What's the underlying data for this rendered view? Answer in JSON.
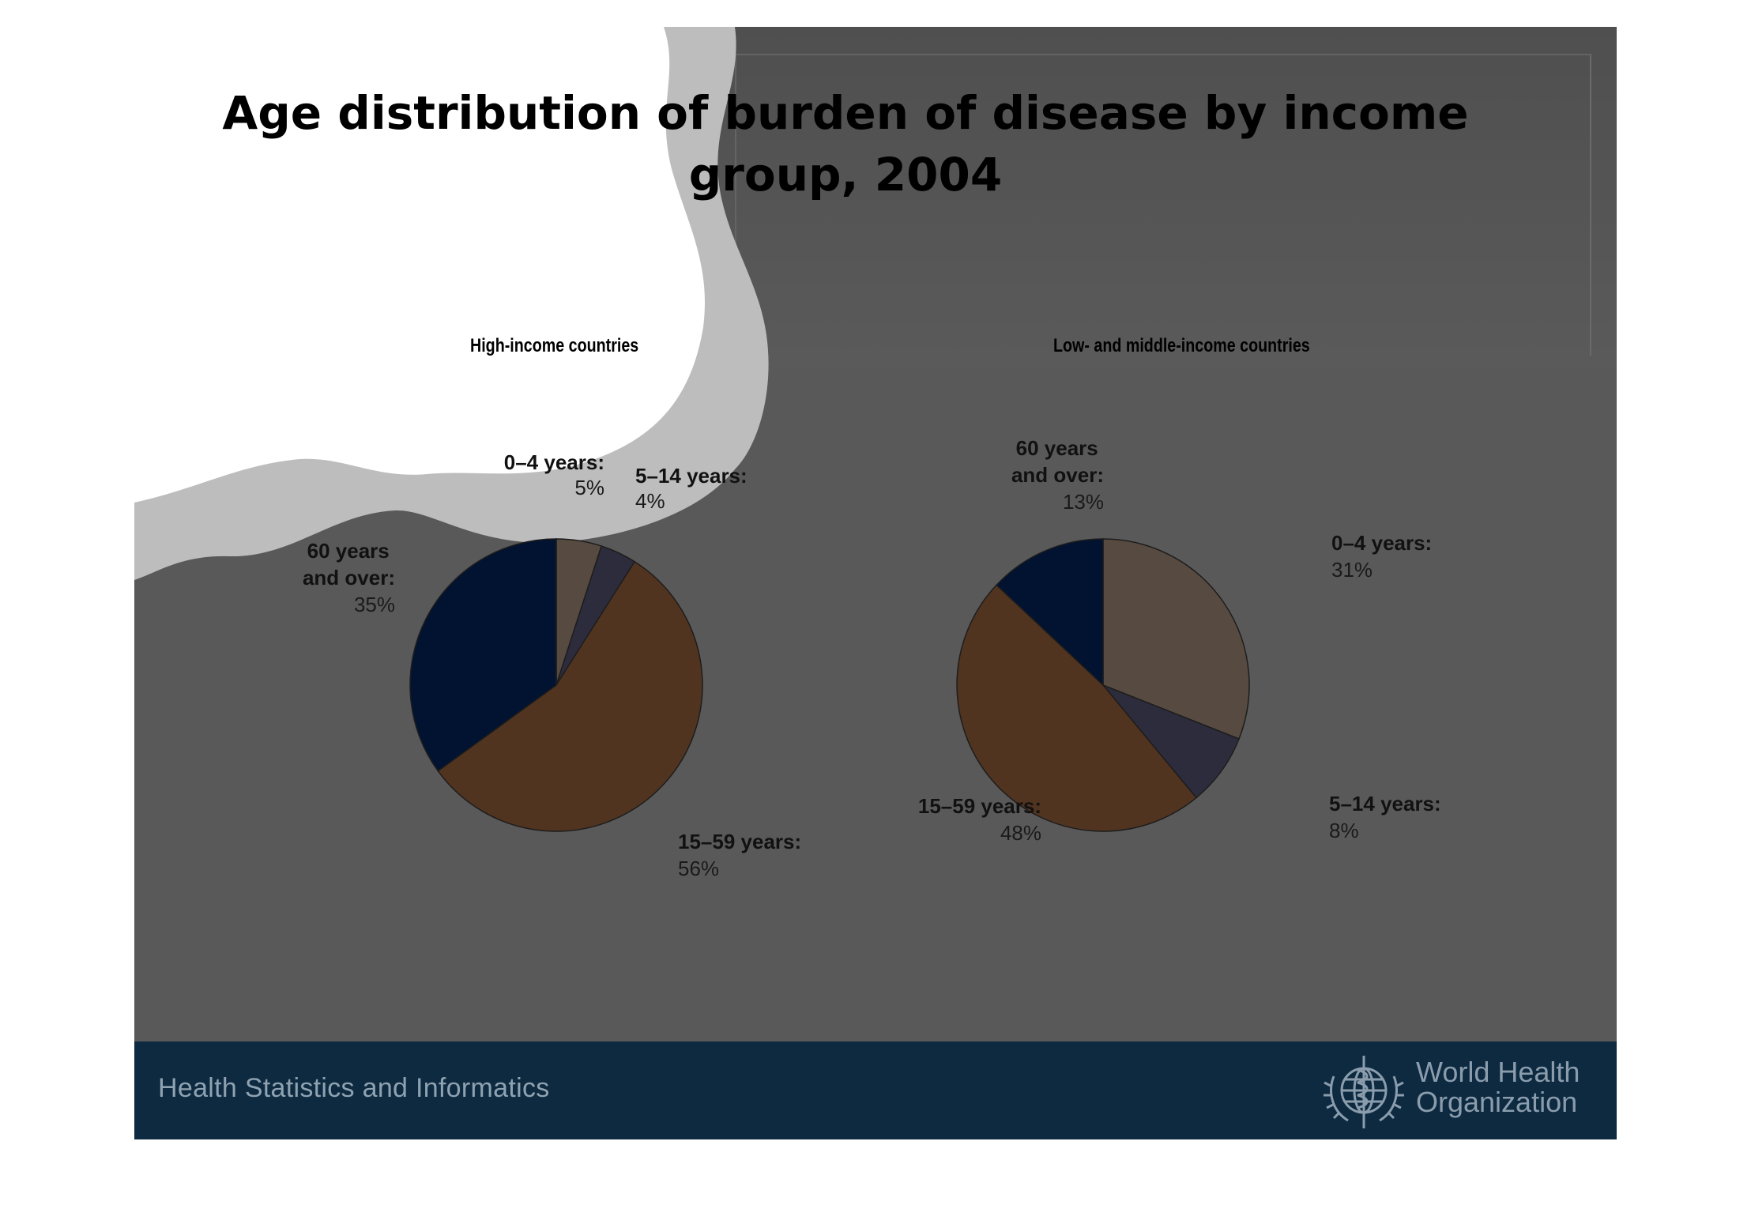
{
  "slide": {
    "title": "Age distribution of burden of disease by income group, 2004",
    "footer": "Health Statistics and Informatics",
    "organization_line1": "World Health",
    "organization_line2": "Organization",
    "footer_color": "#0d2a40"
  },
  "chart_data": [
    {
      "type": "pie",
      "title": "High-income countries",
      "unit": "%",
      "slices": [
        {
          "label": "0–4 years:",
          "value": 5,
          "value_label": "5%",
          "color": "#574a40"
        },
        {
          "label": "5–14 years:",
          "value": 4,
          "value_label": "4%",
          "color": "#2d2c3c"
        },
        {
          "label": "15–59 years:",
          "value": 56,
          "value_label": "56%",
          "color": "#513420"
        },
        {
          "label": "60 years and over:",
          "value": 35,
          "value_label": "35%",
          "color": "#011330"
        }
      ]
    },
    {
      "type": "pie",
      "title": "Low- and middle-income countries",
      "unit": "%",
      "slices": [
        {
          "label": "0–4 years:",
          "value": 31,
          "value_label": "31%",
          "color": "#574a40"
        },
        {
          "label": "5–14 years:",
          "value": 8,
          "value_label": "8%",
          "color": "#2d2c3c"
        },
        {
          "label": "15–59 years:",
          "value": 48,
          "value_label": "48%",
          "color": "#513420"
        },
        {
          "label": "60 years and over:",
          "value": 13,
          "value_label": "13%",
          "color": "#011330"
        }
      ]
    }
  ]
}
